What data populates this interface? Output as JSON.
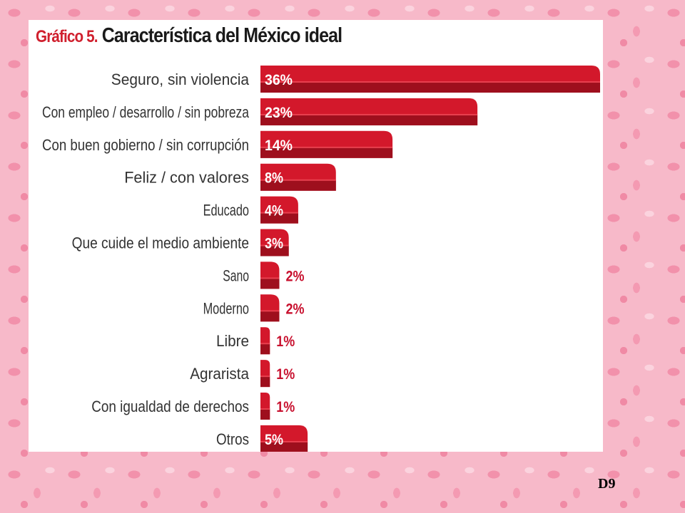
{
  "title_prefix": "Gráfico 5.",
  "title_main": "Característica del México ideal",
  "slide_number": "D9",
  "colors": {
    "bar": "#d3182b",
    "bar_shadow": "#9e0f1d",
    "bar_highlight": "#e8404f",
    "label_out": "#c8102e"
  },
  "chart_data": {
    "type": "bar",
    "orientation": "horizontal",
    "title": "Gráfico 5. Característica del México ideal",
    "unit": "%",
    "categories": [
      "Seguro, sin violencia",
      "Con empleo / desarrollo / sin pobreza",
      "Con buen gobierno / sin corrupción",
      "Feliz / con valores",
      "Educado",
      "Que cuide el medio ambiente",
      "Sano",
      "Moderno",
      "Libre",
      "Agrarista",
      "Con igualdad de derechos",
      "Otros"
    ],
    "values": [
      36,
      23,
      14,
      8,
      4,
      3,
      2,
      2,
      1,
      1,
      1,
      5
    ],
    "value_labels": [
      "36%",
      "23%",
      "14%",
      "8%",
      "4%",
      "3%",
      "2%",
      "2%",
      "1%",
      "1%",
      "1%",
      "5%"
    ],
    "xlim": [
      0,
      36
    ],
    "grid": false,
    "legend": "none"
  }
}
